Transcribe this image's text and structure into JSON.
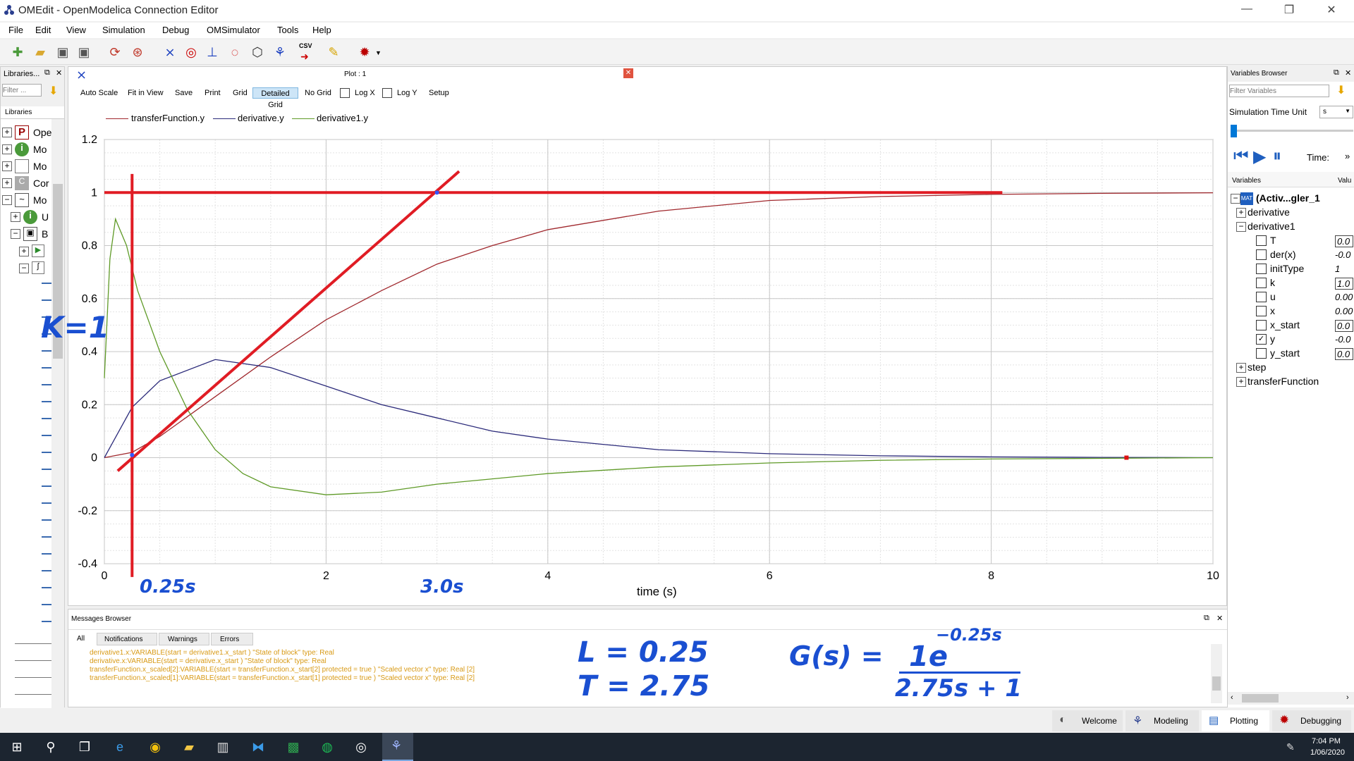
{
  "window": {
    "title": "OMEdit - OpenModelica Connection Editor",
    "minimize": "—",
    "restore": "❐",
    "close": "✕"
  },
  "menu": [
    "File",
    "Edit",
    "View",
    "Simulation",
    "Debug",
    "OMSimulator",
    "Tools",
    "Help"
  ],
  "toolbar": {
    "csv_label": "CSV"
  },
  "libraries": {
    "title": "Libraries...",
    "filter_placeholder": "Filter ...",
    "tab": "Libraries",
    "items": [
      {
        "icon": "P",
        "label": "Ope"
      },
      {
        "icon": "i",
        "label": "Mo"
      },
      {
        "icon": "",
        "label": "Mo"
      },
      {
        "icon": "C",
        "label": "Cor"
      },
      {
        "icon": "~",
        "label": "Mo"
      },
      {
        "icon": "i",
        "label": "U"
      },
      {
        "icon": "▣",
        "label": "B"
      }
    ]
  },
  "plot": {
    "window_title": "Plot : 1",
    "buttons": [
      "Auto Scale",
      "Fit in View",
      "Save",
      "Print",
      "Grid",
      "Detailed Grid",
      "No Grid"
    ],
    "log_x": "Log X",
    "log_y": "Log Y",
    "setup": "Setup",
    "active_grid": "Detailed Grid"
  },
  "colors": {
    "tf": "#a0282d",
    "der": "#2b2a7a",
    "der1": "#5f9a27",
    "red_annot": "#e01c24",
    "accent": "#3399ff"
  },
  "chart_data": {
    "type": "line",
    "xlabel": "time (s)",
    "ylabel": "",
    "xlim": [
      0,
      10
    ],
    "ylim": [
      -0.4,
      1.2
    ],
    "xticks": [
      0,
      2,
      4,
      6,
      8,
      10
    ],
    "yticks": [
      -0.4,
      -0.2,
      0,
      0.2,
      0.4,
      0.6,
      0.8,
      1,
      1.2
    ],
    "grid": "detailed",
    "legend": "top-left",
    "series": [
      {
        "name": "transferFunction.y",
        "color": "#a0282d",
        "x": [
          0,
          0.25,
          0.5,
          1,
          1.5,
          2,
          2.5,
          3,
          3.5,
          4,
          5,
          6,
          7,
          8,
          9,
          10
        ],
        "y": [
          0,
          0.02,
          0.08,
          0.23,
          0.38,
          0.52,
          0.63,
          0.73,
          0.8,
          0.86,
          0.93,
          0.97,
          0.985,
          0.993,
          0.997,
          0.999
        ]
      },
      {
        "name": "derivative.y",
        "color": "#2b2a7a",
        "x": [
          0,
          0.25,
          0.5,
          1,
          1.5,
          2,
          2.5,
          3,
          3.5,
          4,
          5,
          6,
          7,
          8,
          9,
          10
        ],
        "y": [
          0,
          0.19,
          0.29,
          0.37,
          0.34,
          0.27,
          0.2,
          0.15,
          0.1,
          0.07,
          0.03,
          0.015,
          0.007,
          0.003,
          0.001,
          0.0
        ]
      },
      {
        "name": "derivative1.y",
        "color": "#5f9a27",
        "x": [
          0,
          0.05,
          0.1,
          0.2,
          0.3,
          0.5,
          0.75,
          1,
          1.25,
          1.5,
          2,
          2.5,
          3,
          3.5,
          4,
          5,
          6,
          7,
          8,
          10
        ],
        "y": [
          0.3,
          0.75,
          0.9,
          0.8,
          0.63,
          0.4,
          0.18,
          0.03,
          -0.06,
          -0.11,
          -0.14,
          -0.13,
          -0.1,
          -0.08,
          -0.06,
          -0.035,
          -0.02,
          -0.01,
          -0.005,
          0.0
        ]
      }
    ]
  },
  "annotations": {
    "k_label": "K=1",
    "x_mark1": "0.25s",
    "x_mark2": "3.0s",
    "eq_L": "L = 0.25",
    "eq_T": "T = 2.75",
    "eq_G": "G(s) =",
    "eq_num": "1e",
    "eq_exp": "−0.25s",
    "eq_den": "2.75s + 1"
  },
  "messages": {
    "title": "Messages Browser",
    "tabs": [
      "All",
      "Notifications",
      "Warnings",
      "Errors"
    ],
    "lines": [
      "derivative1.x:VARIABLE(start = derivative1.x_start )  \"State of block\" type: Real",
      "derivative.x:VARIABLE(start = derivative.x_start )  \"State of block\" type: Real",
      "transferFunction.x_scaled[2]:VARIABLE(start = transferFunction.x_start[2] protected = true )  \"Scaled vector x\" type: Real [2]",
      "transferFunction.x_scaled[1]:VARIABLE(start = transferFunction.x_start[1] protected = true )  \"Scaled vector x\" type: Real [2]"
    ]
  },
  "variables": {
    "title": "Variables Browser",
    "filter_placeholder": "Filter Variables",
    "sim_time_unit_label": "Simulation Time Unit",
    "sim_time_unit": "s",
    "time_label": "Time:",
    "col_variables": "Variables",
    "col_value": "Valu",
    "root": "(Activ...gler_1",
    "tree": [
      {
        "label": "derivative",
        "expand": "+"
      },
      {
        "label": "derivative1",
        "expand": "−"
      }
    ],
    "leaves": [
      {
        "label": "T",
        "value": "0.0",
        "checked": false,
        "boxed": true
      },
      {
        "label": "der(x)",
        "value": "-0.0",
        "checked": false,
        "boxed": false
      },
      {
        "label": "initType",
        "value": "1",
        "checked": false,
        "boxed": false
      },
      {
        "label": "k",
        "value": "1.0",
        "checked": false,
        "boxed": true
      },
      {
        "label": "u",
        "value": "0.00",
        "checked": false,
        "boxed": false
      },
      {
        "label": "x",
        "value": "0.00",
        "checked": false,
        "boxed": false
      },
      {
        "label": "x_start",
        "value": "0.0",
        "checked": false,
        "boxed": true
      },
      {
        "label": "y",
        "value": "-0.0",
        "checked": true,
        "boxed": false
      },
      {
        "label": "y_start",
        "value": "0.0",
        "checked": false,
        "boxed": true
      }
    ],
    "tail": [
      {
        "label": "step",
        "expand": "+"
      },
      {
        "label": "transferFunction",
        "expand": "+"
      }
    ]
  },
  "perspectives": [
    "Welcome",
    "Modeling",
    "Plotting",
    "Debugging"
  ],
  "taskbar": {
    "time": "7:04 PM",
    "date": "1/06/2020"
  }
}
